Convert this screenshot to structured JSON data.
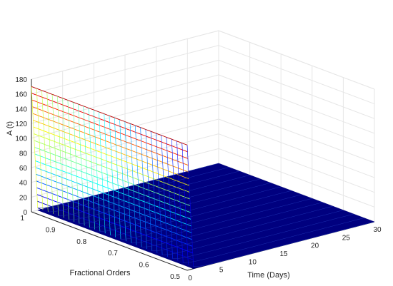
{
  "chart_data": {
    "type": "surface",
    "xlabel": "Time (Days)",
    "ylabel": "Fractional Orders",
    "zlabel": "A (t)",
    "xlim": [
      0,
      30
    ],
    "ylim": [
      0.5,
      1
    ],
    "zlim": [
      0,
      180
    ],
    "x_ticks": [
      "0",
      "5",
      "10",
      "15",
      "20",
      "25",
      "30"
    ],
    "y_ticks": [
      "0.5",
      "0.6",
      "0.7",
      "0.8",
      "0.9",
      "1"
    ],
    "z_ticks": [
      "0",
      "20",
      "40",
      "60",
      "80",
      "100",
      "120",
      "140",
      "160",
      "180"
    ],
    "initial_value_at_t0": 170,
    "value_at_t1": 3,
    "value_at_t30": 0,
    "colormap": "jet",
    "grid": true,
    "colors": {
      "low": "#00007f",
      "high": "#7f0000",
      "grid": "#e6e6e6",
      "axis": "#262626"
    }
  }
}
